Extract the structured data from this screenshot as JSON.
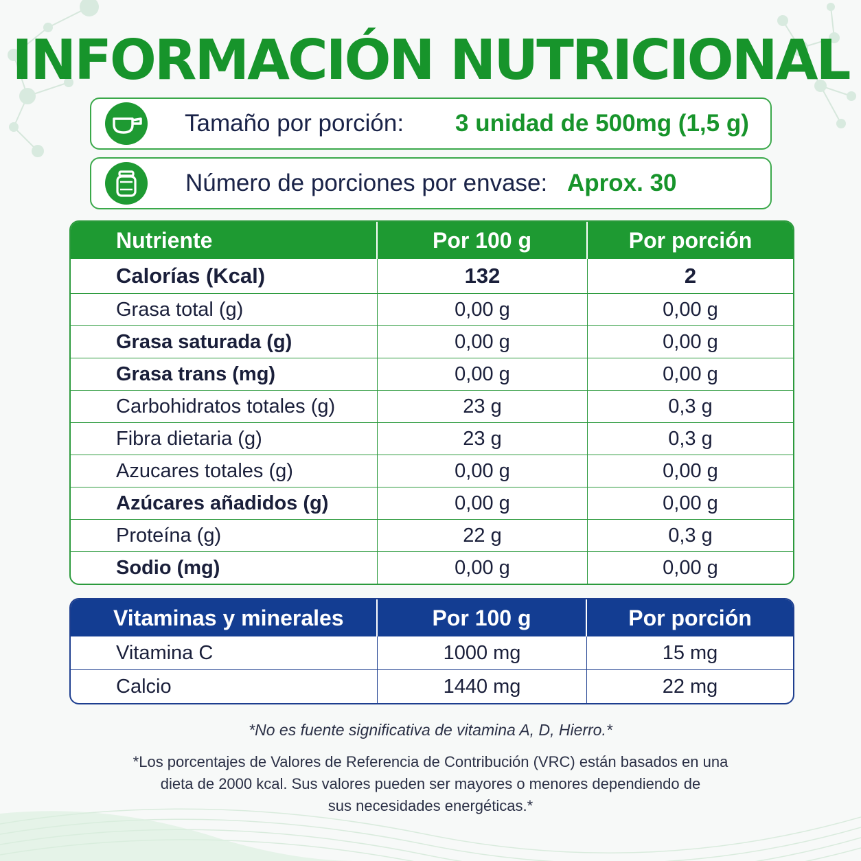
{
  "title": "INFORMACIÓN NUTRICIONAL",
  "serving": {
    "label": "Tamaño por porción:",
    "value": "3 unidad de 500mg (1,5 g)",
    "icon": "scoop-icon"
  },
  "portions": {
    "label": "Número de porciones por envase:",
    "value": "Aprox. 30",
    "icon": "jar-icon"
  },
  "nutrition": {
    "headers": [
      "Nutriente",
      "Por 100 g",
      "Por porción"
    ],
    "rows": [
      {
        "name": "Calorías (Kcal)",
        "per100": "132",
        "perPortion": "2",
        "bold": true
      },
      {
        "name": "Grasa total (g)",
        "per100": "0,00 g",
        "perPortion": "0,00 g",
        "bold": false
      },
      {
        "name": "Grasa saturada (g)",
        "per100": "0,00 g",
        "perPortion": "0,00 g",
        "bold": true
      },
      {
        "name": "Grasa trans (mg)",
        "per100": "0,00 g",
        "perPortion": "0,00 g",
        "bold": true
      },
      {
        "name": "Carbohidratos totales (g)",
        "per100": "23 g",
        "perPortion": "0,3 g",
        "bold": false
      },
      {
        "name": "Fibra dietaria (g)",
        "per100": "23 g",
        "perPortion": "0,3 g",
        "bold": false
      },
      {
        "name": "Azucares totales (g)",
        "per100": "0,00 g",
        "perPortion": "0,00 g",
        "bold": false
      },
      {
        "name": "Azúcares añadidos (g)",
        "per100": "0,00 g",
        "perPortion": "0,00 g",
        "bold": true
      },
      {
        "name": "Proteína (g)",
        "per100": "22 g",
        "perPortion": "0,3 g",
        "bold": false
      },
      {
        "name": "Sodio (mg)",
        "per100": "0,00 g",
        "perPortion": "0,00 g",
        "bold": true
      }
    ]
  },
  "vitamins": {
    "headers": [
      "Vitaminas y minerales",
      "Por 100 g",
      "Por porción"
    ],
    "rows": [
      {
        "name": "Vitamina C",
        "per100": "1000 mg",
        "perPortion": "15 mg"
      },
      {
        "name": "Calcio",
        "per100": "1440 mg",
        "perPortion": "22 mg"
      }
    ]
  },
  "notes": {
    "note1": "*No es fuente significativa de vitamina A, D, Hierro.*",
    "note2_lines": [
      "*Los porcentajes de Valores de Referencia de Contribución (VRC) están basados en una",
      "dieta de 2000 kcal. Sus valores pueden ser mayores o menores dependiendo de",
      "sus necesidades energéticas.*"
    ]
  },
  "colors": {
    "green": "#1e9a32",
    "title_green": "#17942b",
    "blue": "#133d92",
    "text": "#1a1f3a"
  }
}
